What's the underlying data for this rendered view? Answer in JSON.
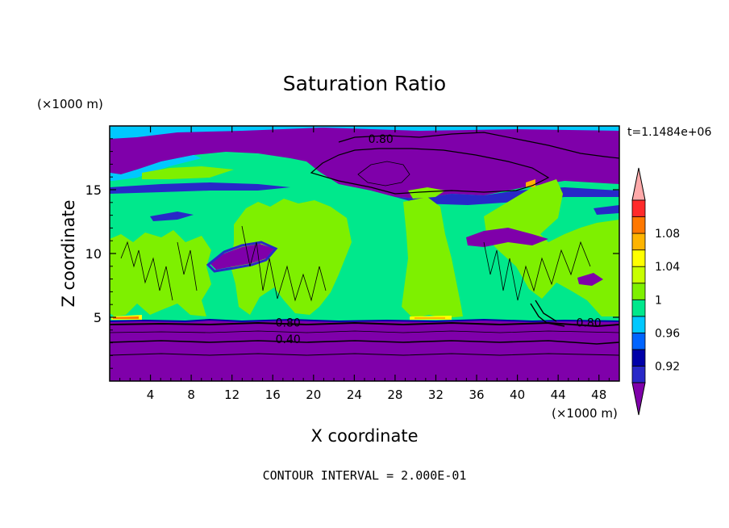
{
  "chart_data": {
    "type": "heatmap",
    "title": "Saturation Ratio",
    "xlabel": "X coordinate",
    "ylabel": "Z coordinate",
    "x_unit": "(×1000 m)",
    "y_unit": "(×1000 m)",
    "time_label": "t=1.1484e+06",
    "footer": "CONTOUR INTERVAL = 2.000E-01",
    "xlim": [
      0,
      50
    ],
    "ylim": [
      0,
      20
    ],
    "x_ticks": [
      4,
      8,
      12,
      16,
      20,
      24,
      28,
      32,
      36,
      40,
      44,
      48
    ],
    "y_ticks": [
      5,
      10,
      15
    ],
    "colorbar": {
      "levels": [
        0.92,
        0.94,
        0.96,
        0.98,
        1.0,
        1.02,
        1.04,
        1.06,
        1.08,
        1.1
      ],
      "labels": [
        "0.92",
        "0.96",
        "1",
        "1.04",
        "1.08"
      ],
      "label_values": [
        0.92,
        0.96,
        1.0,
        1.04,
        1.08
      ],
      "colors": [
        "#7f00aa",
        "#2828c8",
        "#0000a8",
        "#0064ff",
        "#00c8ff",
        "#00e88c",
        "#7ef000",
        "#c8ff00",
        "#ffff00",
        "#ffb400",
        "#ff7800",
        "#ff2a2a",
        "#ffaaaa"
      ]
    },
    "contour_labels": [
      {
        "text": "0.80",
        "x": 26.6,
        "z": 19.0
      },
      {
        "text": "0.80",
        "x": 17.5,
        "z": 4.6
      },
      {
        "text": "0.40",
        "x": 17.5,
        "z": 3.3
      },
      {
        "text": "0.80",
        "x": 47.0,
        "z": 4.6
      }
    ]
  }
}
